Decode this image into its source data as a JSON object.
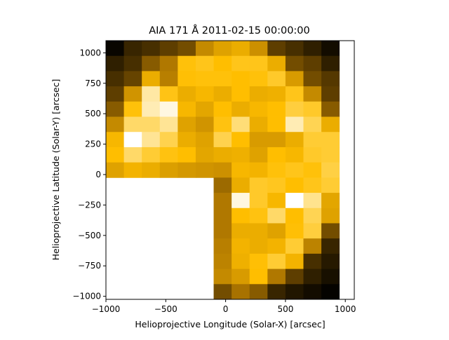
{
  "chart_data": {
    "type": "heatmap",
    "title": "AIA 171 Å 2011-02-15 00:00:00",
    "xlabel": "Helioprojective Longitude (Solar-X) [arcsec]",
    "ylabel": "Helioprojective Latitude (Solar-Y) [arcsec]",
    "xlim": [
      -1000,
      1075
    ],
    "ylim": [
      -1025,
      1100
    ],
    "xticks": [
      -1000,
      -500,
      0,
      500,
      1000
    ],
    "yticks": [
      -1000,
      -750,
      -500,
      -250,
      0,
      250,
      500,
      750,
      1000
    ],
    "cell_width": 150,
    "cell_height": 125,
    "grid": false,
    "colormap": "sdoaia171",
    "color_stops": [
      "#000000",
      "#5e3e00",
      "#b07800",
      "#ffbe00",
      "#ffd968",
      "#ffffff"
    ],
    "x_centers": [
      -925,
      -775,
      -625,
      -475,
      -325,
      -175,
      -25,
      125,
      275,
      425,
      575,
      725,
      875,
      1025
    ],
    "y_centers": [
      1037.5,
      912.5,
      787.5,
      662.5,
      537.5,
      412.5,
      287.5,
      162.5,
      37.5,
      -87.5,
      -212.5,
      -337.5,
      -462.5,
      -587.5,
      -712.5,
      -837.5,
      -962.5
    ],
    "values": [
      [
        0.02,
        0.12,
        0.15,
        0.2,
        0.25,
        0.45,
        0.52,
        0.55,
        0.47,
        0.2,
        0.15,
        0.1,
        0.04,
        null
      ],
      [
        0.1,
        0.15,
        0.3,
        0.4,
        0.62,
        0.65,
        0.6,
        0.65,
        0.65,
        0.55,
        0.25,
        0.2,
        0.1,
        null
      ],
      [
        0.15,
        0.22,
        0.55,
        0.42,
        0.61,
        0.62,
        0.62,
        0.6,
        0.62,
        0.68,
        0.5,
        0.25,
        0.18,
        null
      ],
      [
        0.2,
        0.48,
        0.88,
        0.64,
        0.55,
        0.58,
        0.55,
        0.6,
        0.55,
        0.56,
        0.65,
        0.45,
        0.2,
        null
      ],
      [
        0.3,
        0.62,
        0.9,
        0.96,
        0.58,
        0.53,
        0.6,
        0.55,
        0.58,
        0.6,
        0.72,
        0.68,
        0.3,
        null
      ],
      [
        0.45,
        0.8,
        0.8,
        0.86,
        0.52,
        0.48,
        0.63,
        0.82,
        0.55,
        0.6,
        0.9,
        0.76,
        0.55,
        null
      ],
      [
        0.58,
        1.0,
        0.86,
        0.75,
        0.55,
        0.52,
        0.75,
        0.6,
        0.5,
        0.5,
        0.55,
        0.7,
        0.7,
        null
      ],
      [
        0.6,
        0.8,
        0.7,
        0.63,
        0.6,
        0.53,
        0.55,
        0.56,
        0.52,
        0.6,
        0.58,
        0.68,
        0.7,
        null
      ],
      [
        0.52,
        0.57,
        0.55,
        0.51,
        0.49,
        0.48,
        0.47,
        0.58,
        0.57,
        0.62,
        0.65,
        0.62,
        0.73,
        null
      ],
      [
        null,
        null,
        null,
        null,
        null,
        null,
        0.35,
        0.55,
        0.68,
        0.66,
        0.6,
        0.65,
        0.7,
        null
      ],
      [
        null,
        null,
        null,
        null,
        null,
        null,
        0.4,
        0.96,
        0.68,
        0.58,
        1.0,
        0.85,
        0.53,
        null
      ],
      [
        null,
        null,
        null,
        null,
        null,
        null,
        0.4,
        0.6,
        0.63,
        0.8,
        0.6,
        0.76,
        0.52,
        null
      ],
      [
        null,
        null,
        null,
        null,
        null,
        null,
        0.4,
        0.55,
        0.55,
        0.52,
        0.61,
        0.72,
        0.25,
        null
      ],
      [
        null,
        null,
        null,
        null,
        null,
        null,
        0.42,
        0.57,
        0.55,
        0.57,
        0.7,
        0.43,
        0.12,
        null
      ],
      [
        null,
        null,
        null,
        null,
        null,
        null,
        0.43,
        0.56,
        0.61,
        0.7,
        0.57,
        0.15,
        0.08,
        null
      ],
      [
        null,
        null,
        null,
        null,
        null,
        null,
        0.45,
        0.5,
        0.6,
        0.4,
        0.2,
        0.1,
        0.05,
        null
      ],
      [
        null,
        null,
        null,
        null,
        null,
        null,
        0.25,
        0.38,
        0.3,
        0.12,
        0.07,
        0.04,
        0.01,
        null
      ]
    ]
  }
}
